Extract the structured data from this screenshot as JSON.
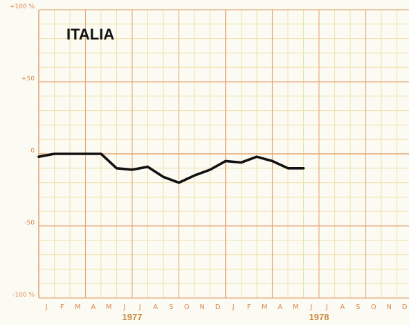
{
  "chart_data": {
    "type": "line",
    "title": "ITALIA",
    "xlabel": "",
    "ylabel": "",
    "y_ticks": [
      {
        "value": 100,
        "label": "+100 %"
      },
      {
        "value": 50,
        "label": "+50"
      },
      {
        "value": 0,
        "label": "0"
      },
      {
        "value": -50,
        "label": "-50"
      },
      {
        "value": -100,
        "label": "-100 %"
      }
    ],
    "ylim": [
      -100,
      100
    ],
    "month_labels": [
      "J",
      "F",
      "M",
      "A",
      "M",
      "J",
      "J",
      "A",
      "S",
      "O",
      "N",
      "D",
      "J",
      "F",
      "M",
      "A",
      "M",
      "J",
      "J",
      "A",
      "S",
      "O",
      "N",
      "D"
    ],
    "year_labels": [
      "1977",
      "1978"
    ],
    "grid": true,
    "colors": {
      "grid_major": "#e6a873",
      "grid_minor": "#efe1a8",
      "line": "#111111",
      "text": "#d9894f"
    },
    "series": [
      {
        "x": [
          "1977-01",
          "1977-02",
          "1977-03",
          "1977-04",
          "1977-05",
          "1977-06",
          "1977-07",
          "1977-08",
          "1977-09",
          "1977-10",
          "1977-11",
          "1977-12",
          "1978-01",
          "1978-02",
          "1978-03",
          "1978-04",
          "1978-05",
          "1978-06"
        ],
        "values": [
          -2,
          0,
          0,
          0,
          0,
          -10,
          -11,
          -9,
          -16,
          -20,
          -15,
          -11,
          -5,
          -6,
          -2,
          -5,
          -10,
          -10
        ]
      }
    ]
  }
}
